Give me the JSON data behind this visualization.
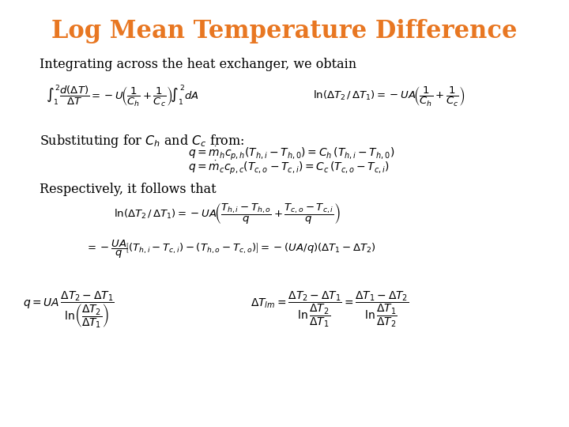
{
  "title": "Log Mean Temperature Difference",
  "title_color": "#E87722",
  "title_fontsize": 22,
  "bg_color": "#ffffff",
  "text_color": "#000000",
  "fig_width": 7.2,
  "fig_height": 5.4,
  "dpi": 100,
  "line1": "Integrating across the heat exchanger, we obtain",
  "line2": "Substituting for $C_h$ and $C_c$ from:",
  "line3": "Respectively, it follows that"
}
